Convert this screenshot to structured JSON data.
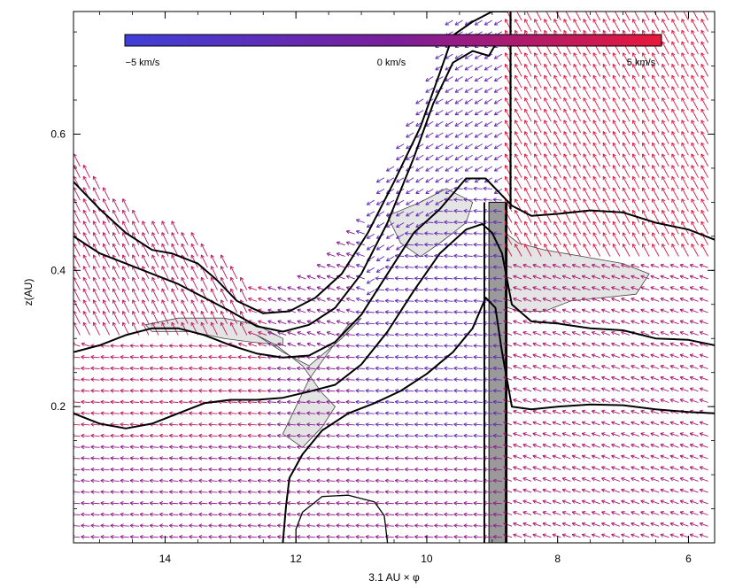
{
  "chart_data": {
    "type": "vector-field",
    "title": "",
    "xlabel": "3.1 AU × φ",
    "ylabel": "z(AU)",
    "x_reversed": true,
    "xlim": [
      15.4,
      5.6
    ],
    "ylim": [
      0.0,
      0.78
    ],
    "xticks": [
      14,
      12,
      10,
      8,
      6
    ],
    "yticks": [
      0.2,
      0.4,
      0.6
    ],
    "colorbar": {
      "labels": [
        "−5 km/s",
        "0 km/s",
        "5 km/s"
      ],
      "values": [
        -5,
        0,
        5
      ],
      "min_color": "#3f3fd8",
      "mid_color": "#7a1e9a",
      "max_color": "#e8183a"
    },
    "density_contours": [
      {
        "name": "outer",
        "points": [
          [
            15.4,
            0.53
          ],
          [
            15.0,
            0.49
          ],
          [
            14.6,
            0.455
          ],
          [
            14.2,
            0.43
          ],
          [
            13.9,
            0.425
          ],
          [
            13.5,
            0.41
          ],
          [
            13.2,
            0.385
          ],
          [
            12.9,
            0.355
          ],
          [
            12.5,
            0.337
          ],
          [
            12.1,
            0.34
          ],
          [
            11.7,
            0.36
          ],
          [
            11.3,
            0.395
          ],
          [
            10.9,
            0.455
          ],
          [
            10.5,
            0.53
          ],
          [
            10.1,
            0.61
          ],
          [
            9.8,
            0.69
          ],
          [
            9.6,
            0.745
          ],
          [
            9.3,
            0.765
          ],
          [
            9.0,
            0.78
          ],
          [
            8.75,
            0.78
          ]
        ]
      },
      {
        "name": "second",
        "points": [
          [
            15.4,
            0.45
          ],
          [
            15.0,
            0.425
          ],
          [
            14.6,
            0.41
          ],
          [
            14.2,
            0.395
          ],
          [
            13.8,
            0.38
          ],
          [
            13.4,
            0.36
          ],
          [
            13.0,
            0.34
          ],
          [
            12.6,
            0.318
          ],
          [
            12.2,
            0.31
          ],
          [
            11.8,
            0.32
          ],
          [
            11.4,
            0.345
          ],
          [
            11.0,
            0.395
          ],
          [
            10.6,
            0.47
          ],
          [
            10.2,
            0.565
          ],
          [
            9.9,
            0.645
          ],
          [
            9.6,
            0.705
          ],
          [
            9.3,
            0.722
          ],
          [
            9.05,
            0.715
          ],
          [
            8.9,
            0.74
          ]
        ]
      },
      {
        "name": "third",
        "points": [
          [
            15.4,
            0.28
          ],
          [
            15.0,
            0.29
          ],
          [
            14.6,
            0.305
          ],
          [
            14.2,
            0.315
          ],
          [
            13.8,
            0.315
          ],
          [
            13.4,
            0.305
          ],
          [
            13.0,
            0.29
          ],
          [
            12.6,
            0.278
          ],
          [
            12.2,
            0.272
          ],
          [
            11.8,
            0.275
          ],
          [
            11.4,
            0.295
          ],
          [
            11.0,
            0.335
          ],
          [
            10.6,
            0.395
          ],
          [
            10.2,
            0.455
          ],
          [
            9.8,
            0.49
          ],
          [
            9.4,
            0.535
          ],
          [
            9.1,
            0.535
          ],
          [
            8.9,
            0.515
          ],
          [
            8.7,
            0.495
          ],
          [
            8.4,
            0.48
          ],
          [
            8.0,
            0.483
          ],
          [
            7.5,
            0.488
          ],
          [
            7.0,
            0.485
          ],
          [
            6.5,
            0.47
          ],
          [
            6.0,
            0.46
          ],
          [
            5.6,
            0.445
          ]
        ]
      },
      {
        "name": "fourth",
        "points": [
          [
            15.4,
            0.19
          ],
          [
            15.0,
            0.175
          ],
          [
            14.6,
            0.168
          ],
          [
            14.2,
            0.175
          ],
          [
            13.8,
            0.19
          ],
          [
            13.4,
            0.205
          ],
          [
            13.0,
            0.21
          ],
          [
            12.6,
            0.21
          ],
          [
            12.2,
            0.213
          ],
          [
            11.8,
            0.222
          ],
          [
            11.4,
            0.232
          ],
          [
            11.0,
            0.262
          ],
          [
            10.6,
            0.31
          ],
          [
            10.2,
            0.37
          ],
          [
            9.8,
            0.425
          ],
          [
            9.4,
            0.46
          ],
          [
            9.15,
            0.468
          ],
          [
            9.0,
            0.455
          ],
          [
            8.85,
            0.425
          ],
          [
            8.7,
            0.35
          ],
          [
            8.4,
            0.325
          ],
          [
            8.0,
            0.322
          ],
          [
            7.5,
            0.315
          ],
          [
            7.0,
            0.312
          ],
          [
            6.5,
            0.3
          ],
          [
            6.0,
            0.298
          ],
          [
            5.6,
            0.29
          ]
        ]
      },
      {
        "name": "fifth",
        "points": [
          [
            12.2,
            0.0
          ],
          [
            12.15,
            0.055
          ],
          [
            12.1,
            0.095
          ],
          [
            11.9,
            0.13
          ],
          [
            11.6,
            0.165
          ],
          [
            11.2,
            0.19
          ],
          [
            10.8,
            0.205
          ],
          [
            10.4,
            0.223
          ],
          [
            10.0,
            0.248
          ],
          [
            9.6,
            0.28
          ],
          [
            9.3,
            0.315
          ],
          [
            9.1,
            0.36
          ],
          [
            8.95,
            0.345
          ],
          [
            8.85,
            0.28
          ],
          [
            8.7,
            0.2
          ],
          [
            8.4,
            0.196
          ],
          [
            8.0,
            0.2
          ],
          [
            7.5,
            0.203
          ],
          [
            7.0,
            0.202
          ],
          [
            6.5,
            0.196
          ],
          [
            6.0,
            0.192
          ],
          [
            5.6,
            0.19
          ]
        ]
      },
      {
        "name": "sixth",
        "points": [
          [
            10.6,
            0.0
          ],
          [
            10.65,
            0.04
          ],
          [
            10.8,
            0.06
          ],
          [
            11.2,
            0.07
          ],
          [
            11.6,
            0.068
          ],
          [
            11.9,
            0.045
          ],
          [
            12.0,
            0.02
          ],
          [
            12.0,
            0.0
          ]
        ]
      }
    ],
    "shock_line_x": 8.72,
    "shaded_regions": [
      {
        "name": "left-region",
        "points": [
          [
            13.8,
            0.33
          ],
          [
            13.1,
            0.33
          ],
          [
            12.6,
            0.32
          ],
          [
            12.2,
            0.3
          ],
          [
            12.2,
            0.29
          ],
          [
            12.7,
            0.295
          ],
          [
            13.1,
            0.3
          ],
          [
            13.6,
            0.31
          ],
          [
            14.2,
            0.31
          ],
          [
            14.3,
            0.32
          ]
        ]
      },
      {
        "name": "mid-region",
        "points": [
          [
            12.6,
            0.305
          ],
          [
            12.3,
            0.29
          ],
          [
            11.9,
            0.26
          ],
          [
            11.6,
            0.22
          ],
          [
            11.4,
            0.2
          ],
          [
            11.6,
            0.17
          ],
          [
            11.9,
            0.14
          ],
          [
            12.2,
            0.16
          ],
          [
            12.0,
            0.2
          ],
          [
            11.8,
            0.24
          ],
          [
            11.5,
            0.28
          ],
          [
            11.2,
            0.32
          ],
          [
            11.0,
            0.33
          ],
          [
            11.3,
            0.3
          ],
          [
            11.8,
            0.26
          ],
          [
            12.2,
            0.28
          ]
        ]
      },
      {
        "name": "upper-region",
        "points": [
          [
            10.6,
            0.48
          ],
          [
            10.4,
            0.44
          ],
          [
            10.1,
            0.42
          ],
          [
            9.8,
            0.44
          ],
          [
            9.4,
            0.47
          ],
          [
            9.3,
            0.5
          ],
          [
            9.7,
            0.52
          ],
          [
            10.1,
            0.5
          ]
        ]
      },
      {
        "name": "right-region",
        "points": [
          [
            9.0,
            0.47
          ],
          [
            8.6,
            0.44
          ],
          [
            8.2,
            0.43
          ],
          [
            7.6,
            0.42
          ],
          [
            7.0,
            0.41
          ],
          [
            6.6,
            0.395
          ],
          [
            6.8,
            0.365
          ],
          [
            7.3,
            0.36
          ],
          [
            7.8,
            0.355
          ],
          [
            8.2,
            0.34
          ],
          [
            8.6,
            0.34
          ],
          [
            8.9,
            0.35
          ]
        ]
      }
    ],
    "dark_band": {
      "x_left": 9.05,
      "x_right": 8.8,
      "y_top": 0.5
    }
  }
}
